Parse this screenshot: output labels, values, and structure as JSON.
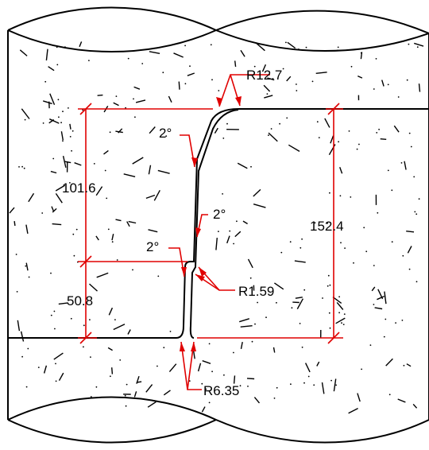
{
  "dimensions": {
    "d101": "101.6",
    "d50": "50.8",
    "d152": "152.4",
    "r127": "R12.7",
    "r159": "R1.59",
    "r635": "R6.35",
    "angle_top": "2°",
    "angle_mid": "2°",
    "angle_low": "2°"
  },
  "colors": {
    "dimension": "#e00000",
    "outline": "#000000"
  }
}
